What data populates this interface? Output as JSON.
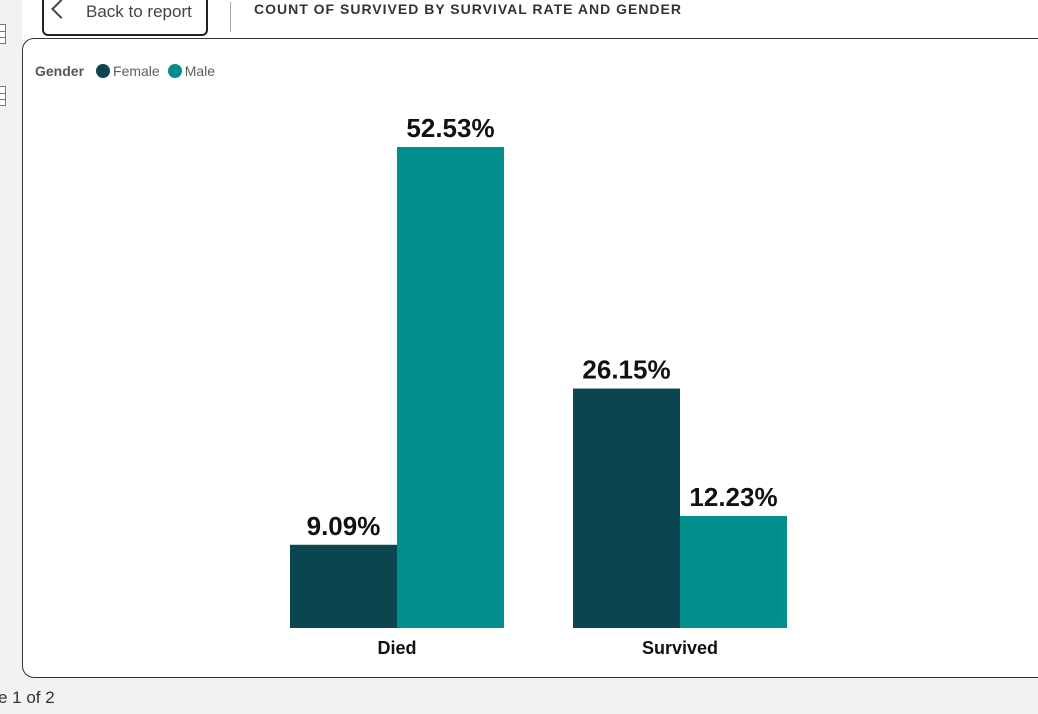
{
  "header": {
    "back_label": "Back to report",
    "visual_title": "COUNT OF SURVIVED BY SURVIVAL RATE AND GENDER"
  },
  "legend": {
    "title": "Gender",
    "items": [
      {
        "label": "Female",
        "color": "#0b4650"
      },
      {
        "label": "Male",
        "color": "#008f8c"
      }
    ]
  },
  "chart_data": {
    "type": "bar",
    "categories": [
      "Died",
      "Survived"
    ],
    "series": [
      {
        "name": "Female",
        "values": [
          9.09,
          26.15
        ],
        "labels": [
          "9.09%",
          "26.15%"
        ],
        "color": "#0b4650"
      },
      {
        "name": "Male",
        "values": [
          52.53,
          12.23
        ],
        "labels": [
          "52.53%",
          "12.23%"
        ],
        "color": "#008f8c"
      }
    ],
    "title": "",
    "xlabel": "",
    "ylabel": "",
    "ylim": [
      0,
      52.53
    ],
    "grid": false,
    "legend_position": "top-left"
  },
  "footer": {
    "page_indicator": "e 1 of 2"
  }
}
